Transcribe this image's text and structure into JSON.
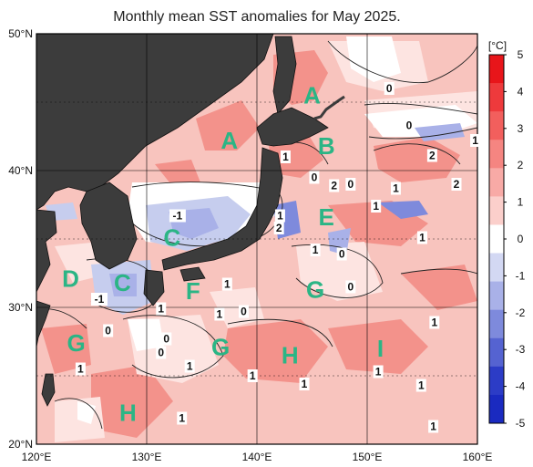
{
  "title": "Monthly mean SST anomalies for May 2025.",
  "map": {
    "lon_range": [
      120,
      160
    ],
    "lat_range": [
      20,
      50
    ],
    "lat_labels": [
      "50°N",
      "40°N",
      "30°N",
      "20°N"
    ],
    "lon_labels": [
      "120°E",
      "130°E",
      "140°E",
      "150°E",
      "160°E"
    ]
  },
  "colorbar": {
    "unit": "[°C]",
    "ticks": [
      "5",
      "4",
      "3",
      "2",
      "1",
      "0",
      "-1",
      "-2",
      "-3",
      "-4",
      "-5"
    ],
    "colors": [
      "#e8151a",
      "#ee3a3c",
      "#f25f5d",
      "#f58581",
      "#f8aaa6",
      "#fbcfcb",
      "#ffffff",
      "#d3d8f3",
      "#a9b1e8",
      "#7e8adc",
      "#5563d1",
      "#2c3cc6",
      "#1a2ac0"
    ]
  },
  "regions": [
    {
      "label": "A",
      "lon": 145.0,
      "lat": 45.5
    },
    {
      "label": "A",
      "lon": 137.5,
      "lat": 42.2
    },
    {
      "label": "B",
      "lon": 146.3,
      "lat": 41.8
    },
    {
      "label": "C",
      "lon": 132.3,
      "lat": 35.1
    },
    {
      "label": "C",
      "lon": 127.8,
      "lat": 31.8
    },
    {
      "label": "D",
      "lon": 123.1,
      "lat": 32.1
    },
    {
      "label": "E",
      "lon": 146.3,
      "lat": 36.6
    },
    {
      "label": "F",
      "lon": 134.2,
      "lat": 31.2
    },
    {
      "label": "G",
      "lon": 145.3,
      "lat": 31.3
    },
    {
      "label": "G",
      "lon": 123.6,
      "lat": 27.4
    },
    {
      "label": "G",
      "lon": 136.7,
      "lat": 27.1
    },
    {
      "label": "H",
      "lon": 143.0,
      "lat": 26.5
    },
    {
      "label": "H",
      "lon": 128.3,
      "lat": 22.3
    },
    {
      "label": "I",
      "lon": 151.2,
      "lat": 27.0
    }
  ],
  "contour_labels": [
    {
      "text": "0",
      "lon": 152.0,
      "lat": 46.0
    },
    {
      "text": "0",
      "lon": 153.8,
      "lat": 43.3
    },
    {
      "text": "1",
      "lon": 159.8,
      "lat": 42.2
    },
    {
      "text": "2",
      "lon": 155.9,
      "lat": 41.1
    },
    {
      "text": "1",
      "lon": 142.6,
      "lat": 41.0
    },
    {
      "text": "0",
      "lon": 145.2,
      "lat": 39.5
    },
    {
      "text": "2",
      "lon": 147.0,
      "lat": 38.9
    },
    {
      "text": "0",
      "lon": 148.5,
      "lat": 39.0
    },
    {
      "text": "1",
      "lon": 152.6,
      "lat": 38.7
    },
    {
      "text": "2",
      "lon": 158.1,
      "lat": 39.0
    },
    {
      "text": "1",
      "lon": 150.8,
      "lat": 37.4
    },
    {
      "text": "1",
      "lon": 142.1,
      "lat": 36.7
    },
    {
      "text": "2",
      "lon": 142.0,
      "lat": 35.8
    },
    {
      "text": "1",
      "lon": 155.0,
      "lat": 35.1
    },
    {
      "text": "1",
      "lon": 145.3,
      "lat": 34.2
    },
    {
      "text": "0",
      "lon": 147.7,
      "lat": 33.9
    },
    {
      "text": "-1",
      "lon": 132.8,
      "lat": 36.7
    },
    {
      "text": "0",
      "lon": 148.5,
      "lat": 31.5
    },
    {
      "text": "-1",
      "lon": 125.7,
      "lat": 30.6
    },
    {
      "text": "1",
      "lon": 137.3,
      "lat": 31.7
    },
    {
      "text": "1",
      "lon": 136.6,
      "lat": 29.5
    },
    {
      "text": "0",
      "lon": 138.8,
      "lat": 29.7
    },
    {
      "text": "1",
      "lon": 131.3,
      "lat": 29.9
    },
    {
      "text": "0",
      "lon": 126.5,
      "lat": 28.3
    },
    {
      "text": "0",
      "lon": 131.8,
      "lat": 27.7
    },
    {
      "text": "0",
      "lon": 131.3,
      "lat": 26.7
    },
    {
      "text": "1",
      "lon": 156.1,
      "lat": 28.9
    },
    {
      "text": "1",
      "lon": 133.9,
      "lat": 25.7
    },
    {
      "text": "1",
      "lon": 151.0,
      "lat": 25.3
    },
    {
      "text": "1",
      "lon": 139.6,
      "lat": 25.0
    },
    {
      "text": "1",
      "lon": 144.3,
      "lat": 24.4
    },
    {
      "text": "1",
      "lon": 154.9,
      "lat": 24.3
    },
    {
      "text": "1",
      "lon": 124.0,
      "lat": 25.5
    },
    {
      "text": "1",
      "lon": 156.0,
      "lat": 21.3
    },
    {
      "text": "1",
      "lon": 133.2,
      "lat": 21.9
    }
  ]
}
